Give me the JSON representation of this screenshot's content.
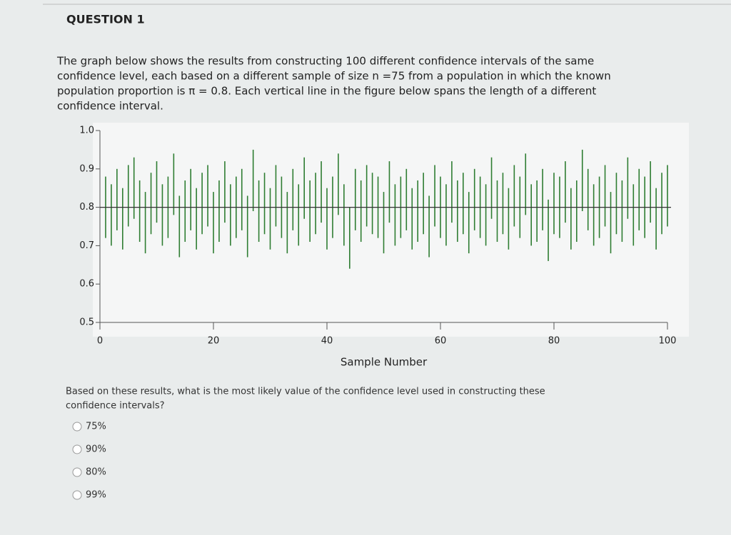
{
  "question": {
    "title": "QUESTION 1",
    "intro_lines": [
      "The graph below shows the results from constructing 100 different confidence intervals of the same",
      "confidence level, each based on a different sample of size n =75 from a population in which the known",
      "population proportion is π = 0.8. Each vertical line in the figure below spans the length of a different",
      "confidence interval."
    ],
    "prompt_lines": [
      "Based on these results, what is the most likely value of the confidence level used in constructing these",
      "confidence intervals?"
    ],
    "options": [
      "75%",
      "90%",
      "80%",
      "99%"
    ]
  },
  "chart_data": {
    "type": "interval",
    "x_label": "Sample Number",
    "color": "#2e7d32",
    "reference_value": 0.8,
    "xlim": [
      0,
      100
    ],
    "xticks": [
      0,
      20,
      40,
      60,
      80,
      100
    ],
    "ylim": [
      0.5,
      1.0
    ],
    "yticks": [
      {
        "value": 1.0,
        "label": "1.0"
      },
      0.9,
      0.8,
      0.7,
      0.6,
      0.5
    ],
    "x": [
      1,
      2,
      3,
      4,
      5,
      6,
      7,
      8,
      9,
      10,
      11,
      12,
      13,
      14,
      15,
      16,
      17,
      18,
      19,
      20,
      21,
      22,
      23,
      24,
      25,
      26,
      27,
      28,
      29,
      30,
      31,
      32,
      33,
      34,
      35,
      36,
      37,
      38,
      39,
      40,
      41,
      42,
      43,
      44,
      45,
      46,
      47,
      48,
      49,
      50,
      51,
      52,
      53,
      54,
      55,
      56,
      57,
      58,
      59,
      60,
      61,
      62,
      63,
      64,
      65,
      66,
      67,
      68,
      69,
      70,
      71,
      72,
      73,
      74,
      75,
      76,
      77,
      78,
      79,
      80,
      81,
      82,
      83,
      84,
      85,
      86,
      87,
      88,
      89,
      90,
      91,
      92,
      93,
      94,
      95,
      96,
      97,
      98,
      99,
      100
    ],
    "low": [
      0.72,
      0.7,
      0.74,
      0.69,
      0.75,
      0.77,
      0.71,
      0.68,
      0.73,
      0.76,
      0.7,
      0.72,
      0.78,
      0.67,
      0.71,
      0.74,
      0.69,
      0.73,
      0.75,
      0.68,
      0.71,
      0.76,
      0.7,
      0.72,
      0.74,
      0.67,
      0.79,
      0.71,
      0.73,
      0.69,
      0.75,
      0.72,
      0.68,
      0.74,
      0.7,
      0.77,
      0.71,
      0.73,
      0.76,
      0.69,
      0.72,
      0.78,
      0.7,
      0.64,
      0.74,
      0.71,
      0.75,
      0.73,
      0.72,
      0.68,
      0.76,
      0.7,
      0.72,
      0.74,
      0.69,
      0.71,
      0.73,
      0.67,
      0.75,
      0.72,
      0.7,
      0.76,
      0.71,
      0.73,
      0.68,
      0.74,
      0.72,
      0.7,
      0.77,
      0.71,
      0.73,
      0.69,
      0.75,
      0.72,
      0.78,
      0.7,
      0.71,
      0.74,
      0.66,
      0.73,
      0.72,
      0.76,
      0.69,
      0.71,
      0.79,
      0.74,
      0.7,
      0.72,
      0.75,
      0.68,
      0.73,
      0.71,
      0.77,
      0.7,
      0.74,
      0.72,
      0.76,
      0.69,
      0.73,
      0.75
    ],
    "high": [
      0.88,
      0.86,
      0.9,
      0.85,
      0.91,
      0.93,
      0.87,
      0.84,
      0.89,
      0.92,
      0.86,
      0.88,
      0.94,
      0.83,
      0.87,
      0.9,
      0.85,
      0.89,
      0.91,
      0.84,
      0.87,
      0.92,
      0.86,
      0.88,
      0.9,
      0.83,
      0.95,
      0.87,
      0.89,
      0.85,
      0.91,
      0.88,
      0.84,
      0.9,
      0.86,
      0.93,
      0.87,
      0.89,
      0.92,
      0.85,
      0.88,
      0.94,
      0.86,
      0.8,
      0.9,
      0.87,
      0.91,
      0.89,
      0.88,
      0.84,
      0.92,
      0.86,
      0.88,
      0.9,
      0.85,
      0.87,
      0.89,
      0.83,
      0.91,
      0.88,
      0.86,
      0.92,
      0.87,
      0.89,
      0.84,
      0.9,
      0.88,
      0.86,
      0.93,
      0.87,
      0.89,
      0.85,
      0.91,
      0.88,
      0.94,
      0.86,
      0.87,
      0.9,
      0.82,
      0.89,
      0.88,
      0.92,
      0.85,
      0.87,
      0.95,
      0.9,
      0.86,
      0.88,
      0.91,
      0.84,
      0.89,
      0.87,
      0.93,
      0.86,
      0.9,
      0.88,
      0.92,
      0.85,
      0.89,
      0.91
    ]
  }
}
